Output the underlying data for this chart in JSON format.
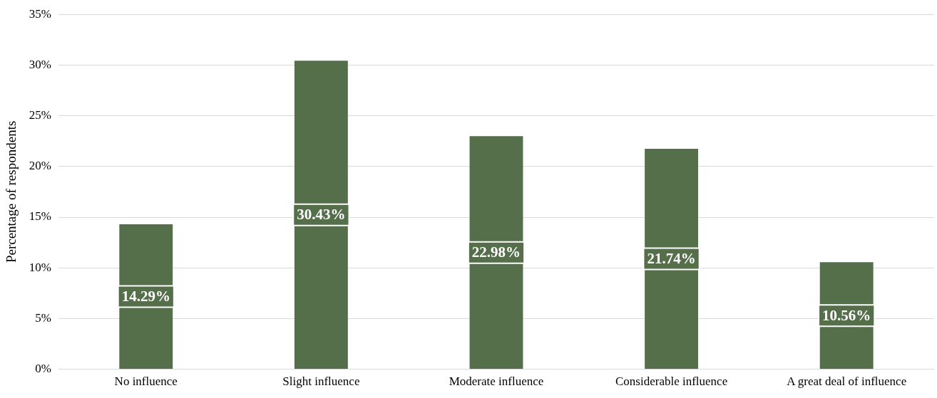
{
  "chart_data": {
    "type": "bar",
    "ylabel": "Percentage of respondents",
    "categories": [
      "No influence",
      "Slight influence",
      "Moderate influence",
      "Considerable influence",
      "A great deal of influence"
    ],
    "values": [
      14.29,
      30.43,
      22.98,
      21.74,
      10.56
    ],
    "color": "#566f4b",
    "value_labels": [
      "14.29%",
      "30.43%",
      "22.98%",
      "21.74%",
      "10.56%"
    ],
    "ylim": [
      0,
      35
    ],
    "yticks": [
      {
        "value": 0,
        "label": "0%"
      },
      {
        "value": 5,
        "label": "5%"
      },
      {
        "value": 10,
        "label": "10%"
      },
      {
        "value": 15,
        "label": "15%"
      },
      {
        "value": 20,
        "label": "20%"
      },
      {
        "value": 25,
        "label": "25%"
      },
      {
        "value": 30,
        "label": "30%"
      },
      {
        "value": 35,
        "label": "35%"
      }
    ],
    "grid": "y",
    "legend": false
  }
}
